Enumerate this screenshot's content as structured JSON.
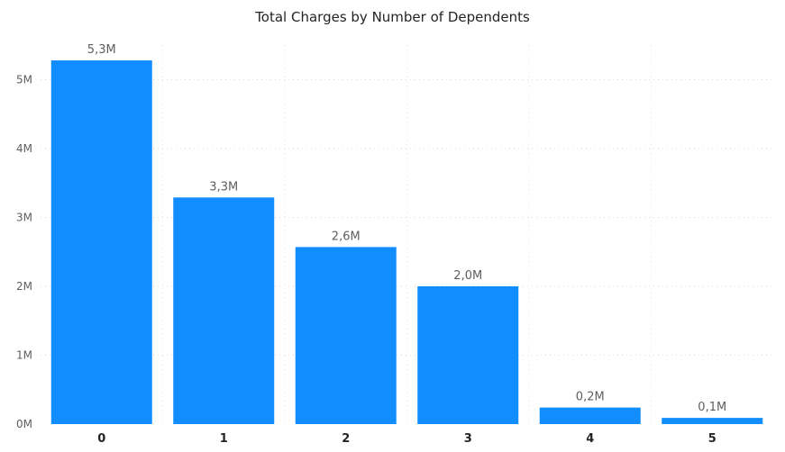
{
  "chart_data": {
    "type": "bar",
    "title": "Total Charges by Number of Dependents",
    "xlabel": "",
    "ylabel": "",
    "categories": [
      "0",
      "1",
      "2",
      "3",
      "4",
      "5"
    ],
    "values": [
      5.28,
      3.29,
      2.57,
      2.0,
      0.24,
      0.09
    ],
    "value_unit": "M",
    "data_labels": [
      "5,3M",
      "3,3M",
      "2,6M",
      "2,0M",
      "0,2M",
      "0,1M"
    ],
    "y_ticks": [
      0,
      1,
      2,
      3,
      4,
      5
    ],
    "y_tick_labels": [
      "0M",
      "1M",
      "2M",
      "3M",
      "4M",
      "5M"
    ],
    "ylim": [
      0,
      5.5
    ],
    "grid": true,
    "legend": "none",
    "bar_color": "#118DFF"
  }
}
